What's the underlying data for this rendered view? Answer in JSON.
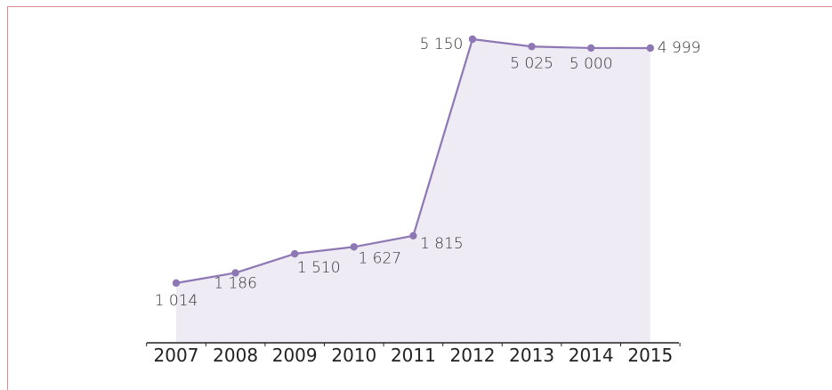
{
  "colors": {
    "line": "#8e77b5",
    "area": "#efebf4",
    "frame": "#d98a96",
    "axis": "#222222"
  },
  "chart_data": {
    "type": "area",
    "categories": [
      "2007",
      "2008",
      "2009",
      "2010",
      "2011",
      "2012",
      "2013",
      "2014",
      "2015"
    ],
    "values": [
      1014,
      1186,
      1510,
      1627,
      1815,
      5150,
      5025,
      5000,
      4999
    ],
    "data_labels": [
      "1 014",
      "1 186",
      "1 510",
      "1 627",
      "1 815",
      "5 150",
      "5 025",
      "5 000",
      "4 999"
    ],
    "ylim": [
      0,
      5150
    ],
    "grid": false,
    "legend": "none"
  }
}
